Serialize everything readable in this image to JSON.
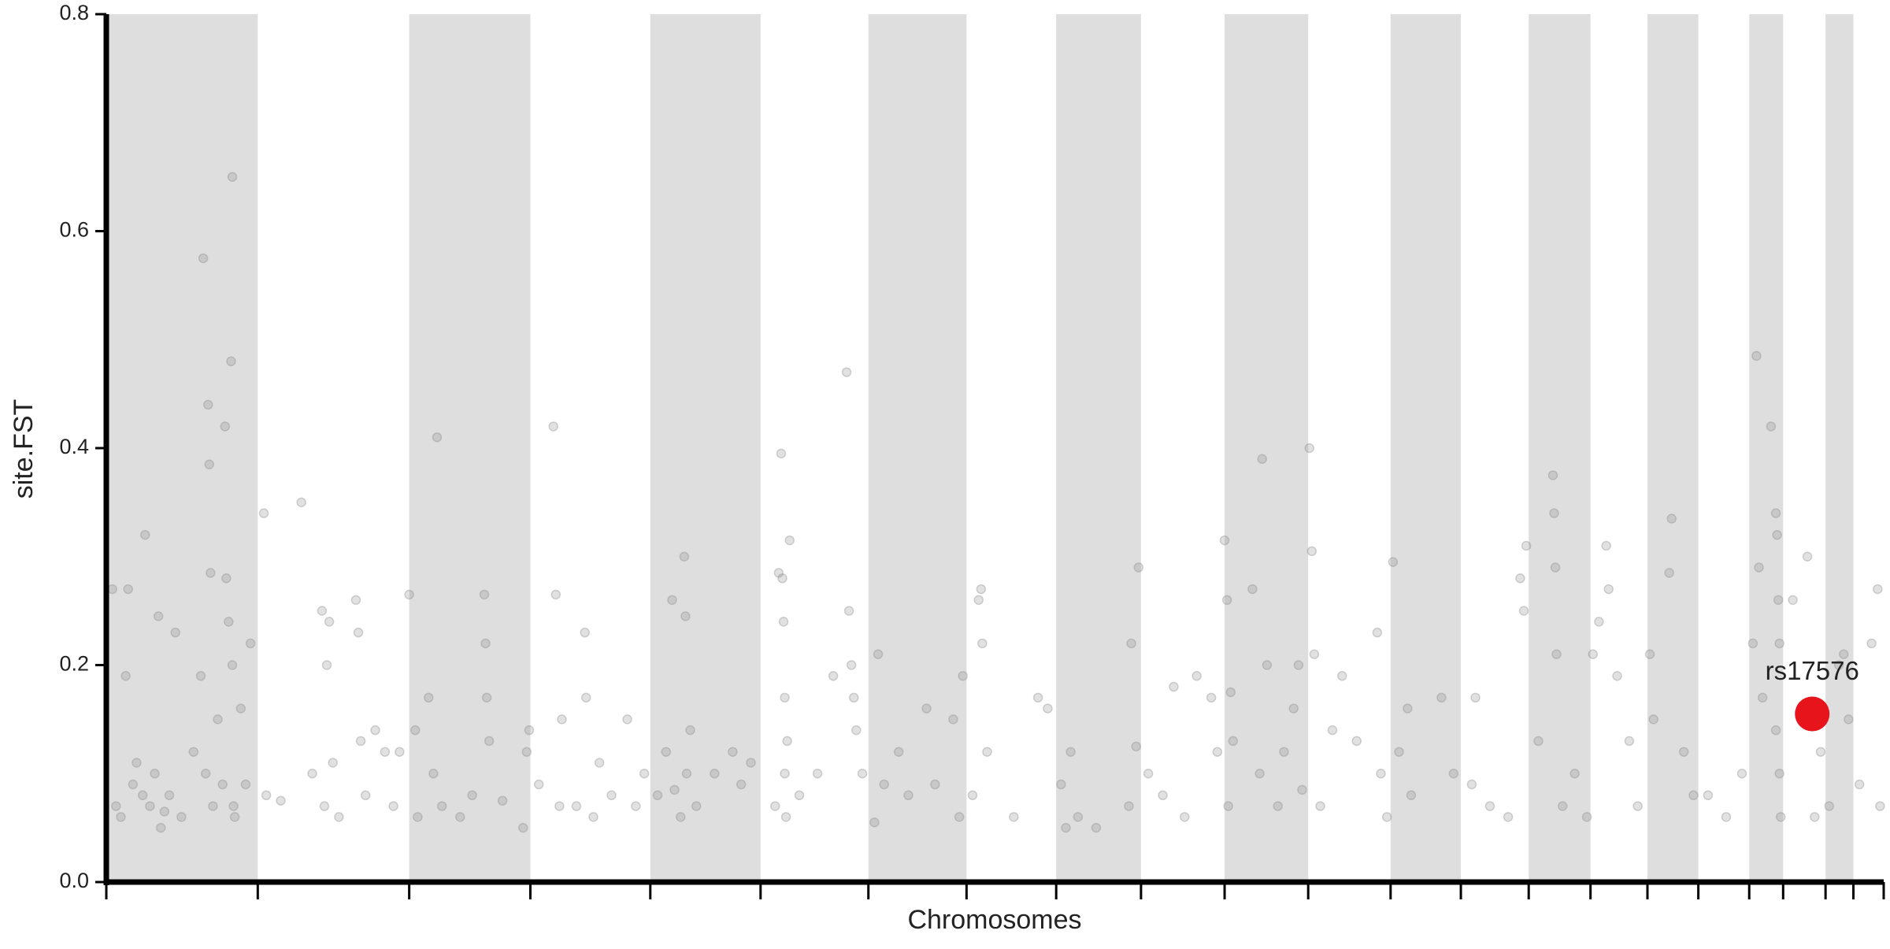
{
  "chart_data": {
    "type": "scatter",
    "xlabel": "Chromosomes",
    "ylabel": "site.FST",
    "xlim": [
      88,
      1555
    ],
    "ylim": [
      0,
      0.8
    ],
    "yticks": [
      {
        "value": 0,
        "label": "0.0"
      },
      0.2,
      0.4,
      0.6,
      0.8
    ],
    "xticks": [
      88,
      213,
      338,
      438,
      537,
      628,
      717,
      798,
      872,
      942,
      1011,
      1080,
      1148,
      1206,
      1262,
      1313,
      1360,
      1402,
      1444,
      1472,
      1507,
      1530,
      1555
    ],
    "band_color": "#dedede",
    "points": {
      "color": "#888888",
      "x": [
        93,
        96,
        100,
        104,
        106,
        110,
        113,
        118,
        120,
        124,
        128,
        131,
        133,
        136,
        140,
        145,
        150,
        160,
        166,
        168,
        170,
        172,
        173,
        174,
        176,
        180,
        184,
        186,
        187,
        189,
        191,
        192,
        192,
        193,
        194,
        199,
        203,
        207,
        218,
        220,
        232,
        249,
        258,
        266,
        268,
        270,
        272,
        275,
        280,
        294,
        296,
        298,
        302,
        310,
        318,
        325,
        330,
        338,
        343,
        345,
        354,
        358,
        361,
        365,
        380,
        390,
        400,
        401,
        402,
        404,
        415,
        432,
        435,
        437,
        445,
        457,
        459,
        462,
        464,
        476,
        483,
        484,
        490,
        495,
        505,
        518,
        525,
        532,
        543,
        550,
        555,
        557,
        562,
        565,
        566,
        567,
        570,
        575,
        590,
        605,
        612,
        620,
        640,
        643,
        645,
        646,
        647,
        648,
        648,
        649,
        650,
        652,
        660,
        675,
        688,
        699,
        701,
        703,
        705,
        707,
        712,
        722,
        725,
        730,
        742,
        750,
        765,
        772,
        787,
        792,
        795,
        803,
        808,
        810,
        811,
        815,
        837,
        857,
        865,
        876,
        880,
        884,
        890,
        905,
        932,
        934,
        938,
        940,
        948,
        960,
        969,
        978,
        988,
        1000,
        1005,
        1011,
        1013,
        1014,
        1016,
        1018,
        1034,
        1040,
        1042,
        1046,
        1055,
        1060,
        1068,
        1072,
        1075,
        1081,
        1083,
        1085,
        1090,
        1100,
        1108,
        1120,
        1137,
        1140,
        1145,
        1150,
        1155,
        1162,
        1165,
        1190,
        1200,
        1215,
        1218,
        1230,
        1245,
        1255,
        1258,
        1260,
        1270,
        1282,
        1283,
        1284,
        1285,
        1290,
        1300,
        1310,
        1315,
        1320,
        1326,
        1328,
        1335,
        1345,
        1352,
        1362,
        1365,
        1378,
        1380,
        1390,
        1398,
        1410,
        1425,
        1438,
        1447,
        1450,
        1452,
        1455,
        1462,
        1466,
        1467,
        1468,
        1469,
        1469,
        1470,
        1466,
        1480,
        1492,
        1498,
        1503,
        1510,
        1518,
        1522,
        1526,
        1535,
        1545,
        1550,
        1552
      ],
      "y": [
        0.27,
        0.07,
        0.06,
        0.19,
        0.27,
        0.09,
        0.11,
        0.08,
        0.32,
        0.07,
        0.1,
        0.245,
        0.05,
        0.065,
        0.08,
        0.23,
        0.06,
        0.12,
        0.19,
        0.575,
        0.1,
        0.44,
        0.385,
        0.285,
        0.07,
        0.15,
        0.09,
        0.42,
        0.28,
        0.24,
        0.48,
        0.65,
        0.2,
        0.07,
        0.06,
        0.16,
        0.09,
        0.22,
        0.34,
        0.08,
        0.075,
        0.35,
        0.1,
        0.25,
        0.07,
        0.2,
        0.24,
        0.11,
        0.06,
        0.26,
        0.23,
        0.13,
        0.08,
        0.14,
        0.12,
        0.07,
        0.12,
        0.265,
        0.14,
        0.06,
        0.17,
        0.1,
        0.41,
        0.07,
        0.06,
        0.08,
        0.265,
        0.22,
        0.17,
        0.13,
        0.075,
        0.05,
        0.12,
        0.14,
        0.09,
        0.42,
        0.265,
        0.07,
        0.15,
        0.07,
        0.23,
        0.17,
        0.06,
        0.11,
        0.08,
        0.15,
        0.07,
        0.1,
        0.08,
        0.12,
        0.26,
        0.085,
        0.06,
        0.3,
        0.245,
        0.1,
        0.14,
        0.07,
        0.1,
        0.12,
        0.09,
        0.11,
        0.07,
        0.285,
        0.395,
        0.28,
        0.24,
        0.17,
        0.1,
        0.06,
        0.13,
        0.315,
        0.08,
        0.1,
        0.19,
        0.47,
        0.25,
        0.2,
        0.17,
        0.14,
        0.1,
        0.055,
        0.21,
        0.09,
        0.12,
        0.08,
        0.16,
        0.09,
        0.15,
        0.06,
        0.19,
        0.08,
        0.26,
        0.27,
        0.22,
        0.12,
        0.06,
        0.17,
        0.16,
        0.09,
        0.05,
        0.12,
        0.06,
        0.05,
        0.07,
        0.22,
        0.125,
        0.29,
        0.1,
        0.08,
        0.18,
        0.06,
        0.19,
        0.17,
        0.12,
        0.315,
        0.26,
        0.07,
        0.175,
        0.13,
        0.27,
        0.1,
        0.39,
        0.2,
        0.07,
        0.12,
        0.16,
        0.2,
        0.085,
        0.4,
        0.305,
        0.21,
        0.07,
        0.14,
        0.19,
        0.13,
        0.23,
        0.1,
        0.06,
        0.295,
        0.12,
        0.16,
        0.08,
        0.17,
        0.1,
        0.09,
        0.17,
        0.07,
        0.06,
        0.28,
        0.25,
        0.31,
        0.13,
        0.375,
        0.34,
        0.29,
        0.21,
        0.07,
        0.1,
        0.06,
        0.21,
        0.24,
        0.31,
        0.27,
        0.19,
        0.13,
        0.07,
        0.21,
        0.15,
        0.285,
        0.335,
        0.12,
        0.08,
        0.08,
        0.06,
        0.1,
        0.22,
        0.485,
        0.29,
        0.17,
        0.42,
        0.34,
        0.32,
        0.26,
        0.22,
        0.1,
        0.06,
        0.14,
        0.26,
        0.3,
        0.06,
        0.12,
        0.07,
        0.2,
        0.21,
        0.15,
        0.09,
        0.22,
        0.27,
        0.07
      ]
    },
    "highlight": {
      "label": "rs17576",
      "x": 1496,
      "y": 0.155,
      "color": "#e8141c"
    }
  }
}
